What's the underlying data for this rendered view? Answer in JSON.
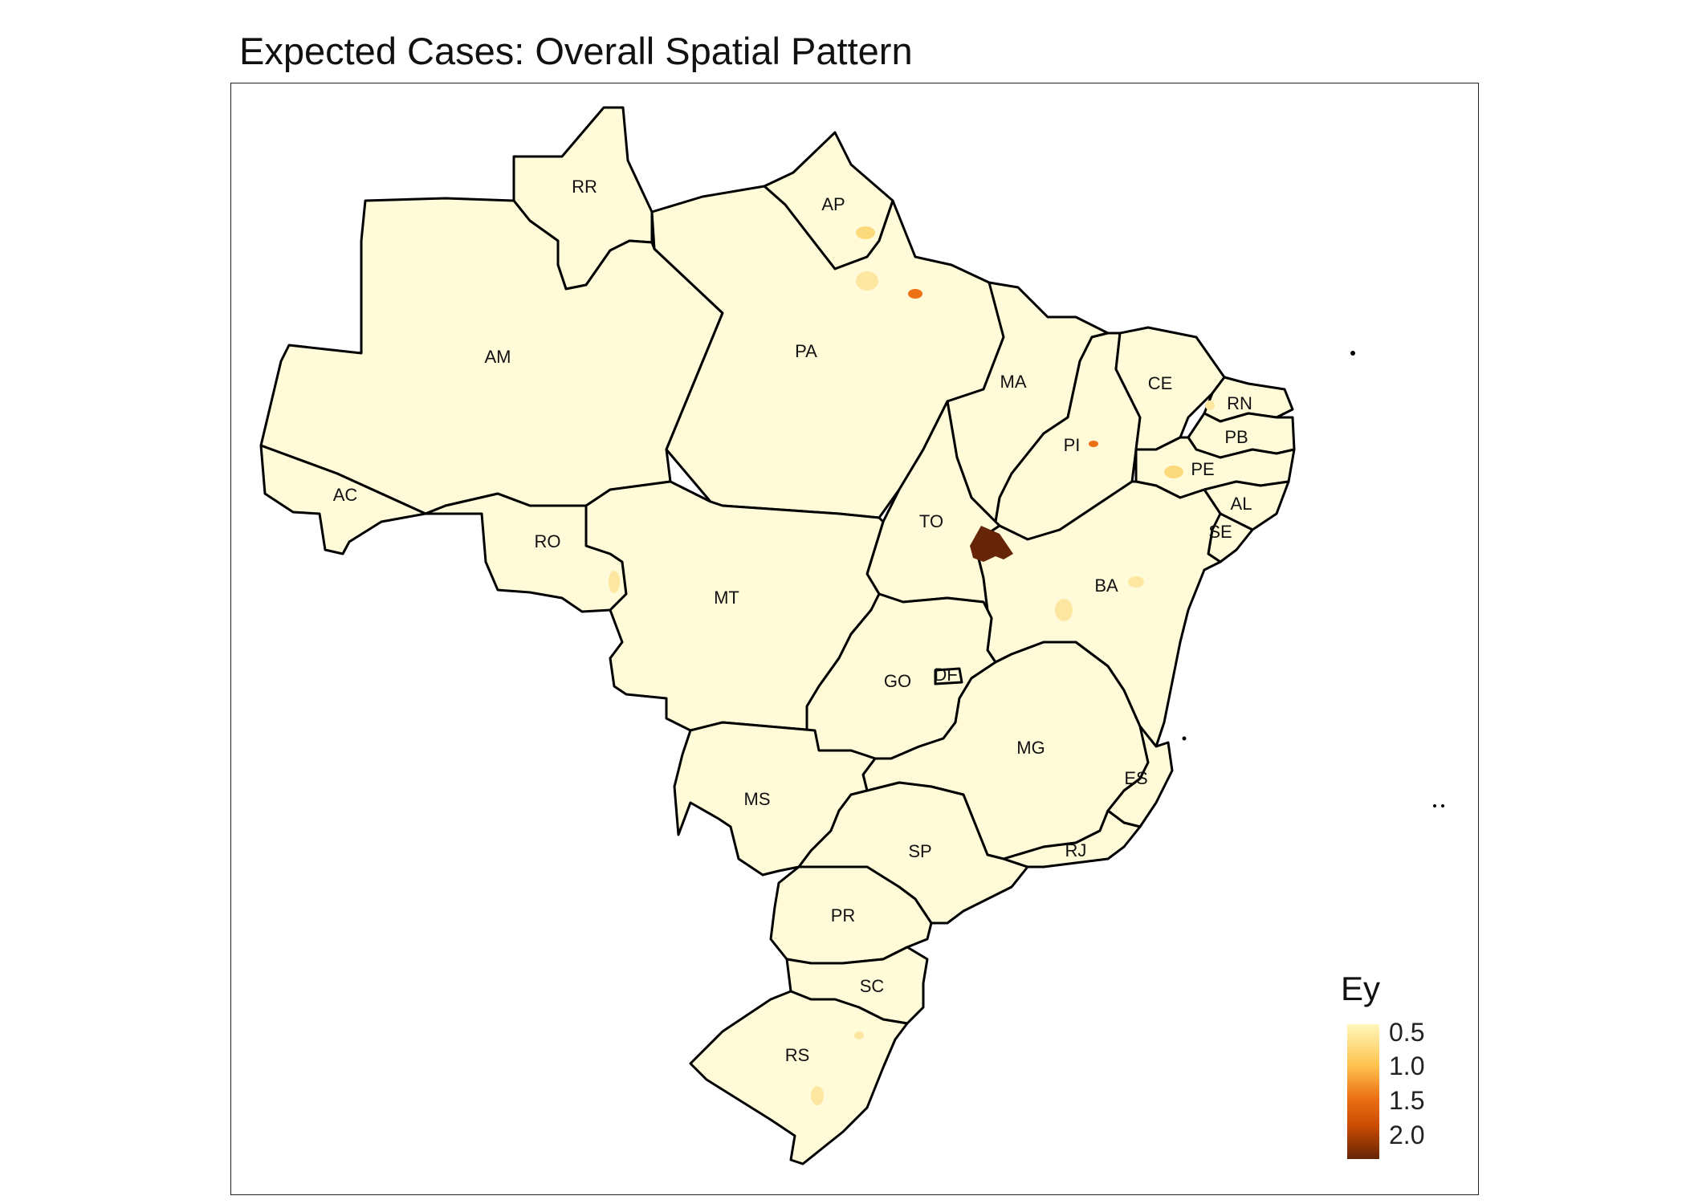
{
  "title": "Expected Cases: Overall Spatial Pattern",
  "legend": {
    "title": "Ey",
    "ticks": [
      "0.5",
      "1.0",
      "1.5",
      "2.0"
    ],
    "colors": [
      "#fff7bc",
      "#fec44f",
      "#ec7014",
      "#cc4c02",
      "#662506"
    ]
  },
  "map": {
    "base_fill": "#fffbd8",
    "border_color": "#000000",
    "states": [
      {
        "id": "RR",
        "label": "RR"
      },
      {
        "id": "AP",
        "label": "AP"
      },
      {
        "id": "AM",
        "label": "AM"
      },
      {
        "id": "PA",
        "label": "PA"
      },
      {
        "id": "MA",
        "label": "MA"
      },
      {
        "id": "CE",
        "label": "CE"
      },
      {
        "id": "RN",
        "label": "RN"
      },
      {
        "id": "PB",
        "label": "PB"
      },
      {
        "id": "PI",
        "label": "PI"
      },
      {
        "id": "PE",
        "label": "PE"
      },
      {
        "id": "AL",
        "label": "AL"
      },
      {
        "id": "SE",
        "label": "SE"
      },
      {
        "id": "AC",
        "label": "AC"
      },
      {
        "id": "RO",
        "label": "RO"
      },
      {
        "id": "TO",
        "label": "TO"
      },
      {
        "id": "BA",
        "label": "BA"
      },
      {
        "id": "MT",
        "label": "MT"
      },
      {
        "id": "GO",
        "label": "GO"
      },
      {
        "id": "DF",
        "label": "DF"
      },
      {
        "id": "MG",
        "label": "MG"
      },
      {
        "id": "ES",
        "label": "ES"
      },
      {
        "id": "MS",
        "label": "MS"
      },
      {
        "id": "SP",
        "label": "SP"
      },
      {
        "id": "RJ",
        "label": "RJ"
      },
      {
        "id": "PR",
        "label": "PR"
      },
      {
        "id": "SC",
        "label": "SC"
      },
      {
        "id": "RS",
        "label": "RS"
      }
    ],
    "highlights": [
      {
        "area": "BA/TO border",
        "value": 2.0
      },
      {
        "area": "PA near Belém",
        "value": 1.2
      },
      {
        "area": "PI near Teresina",
        "value": 1.1
      }
    ]
  }
}
